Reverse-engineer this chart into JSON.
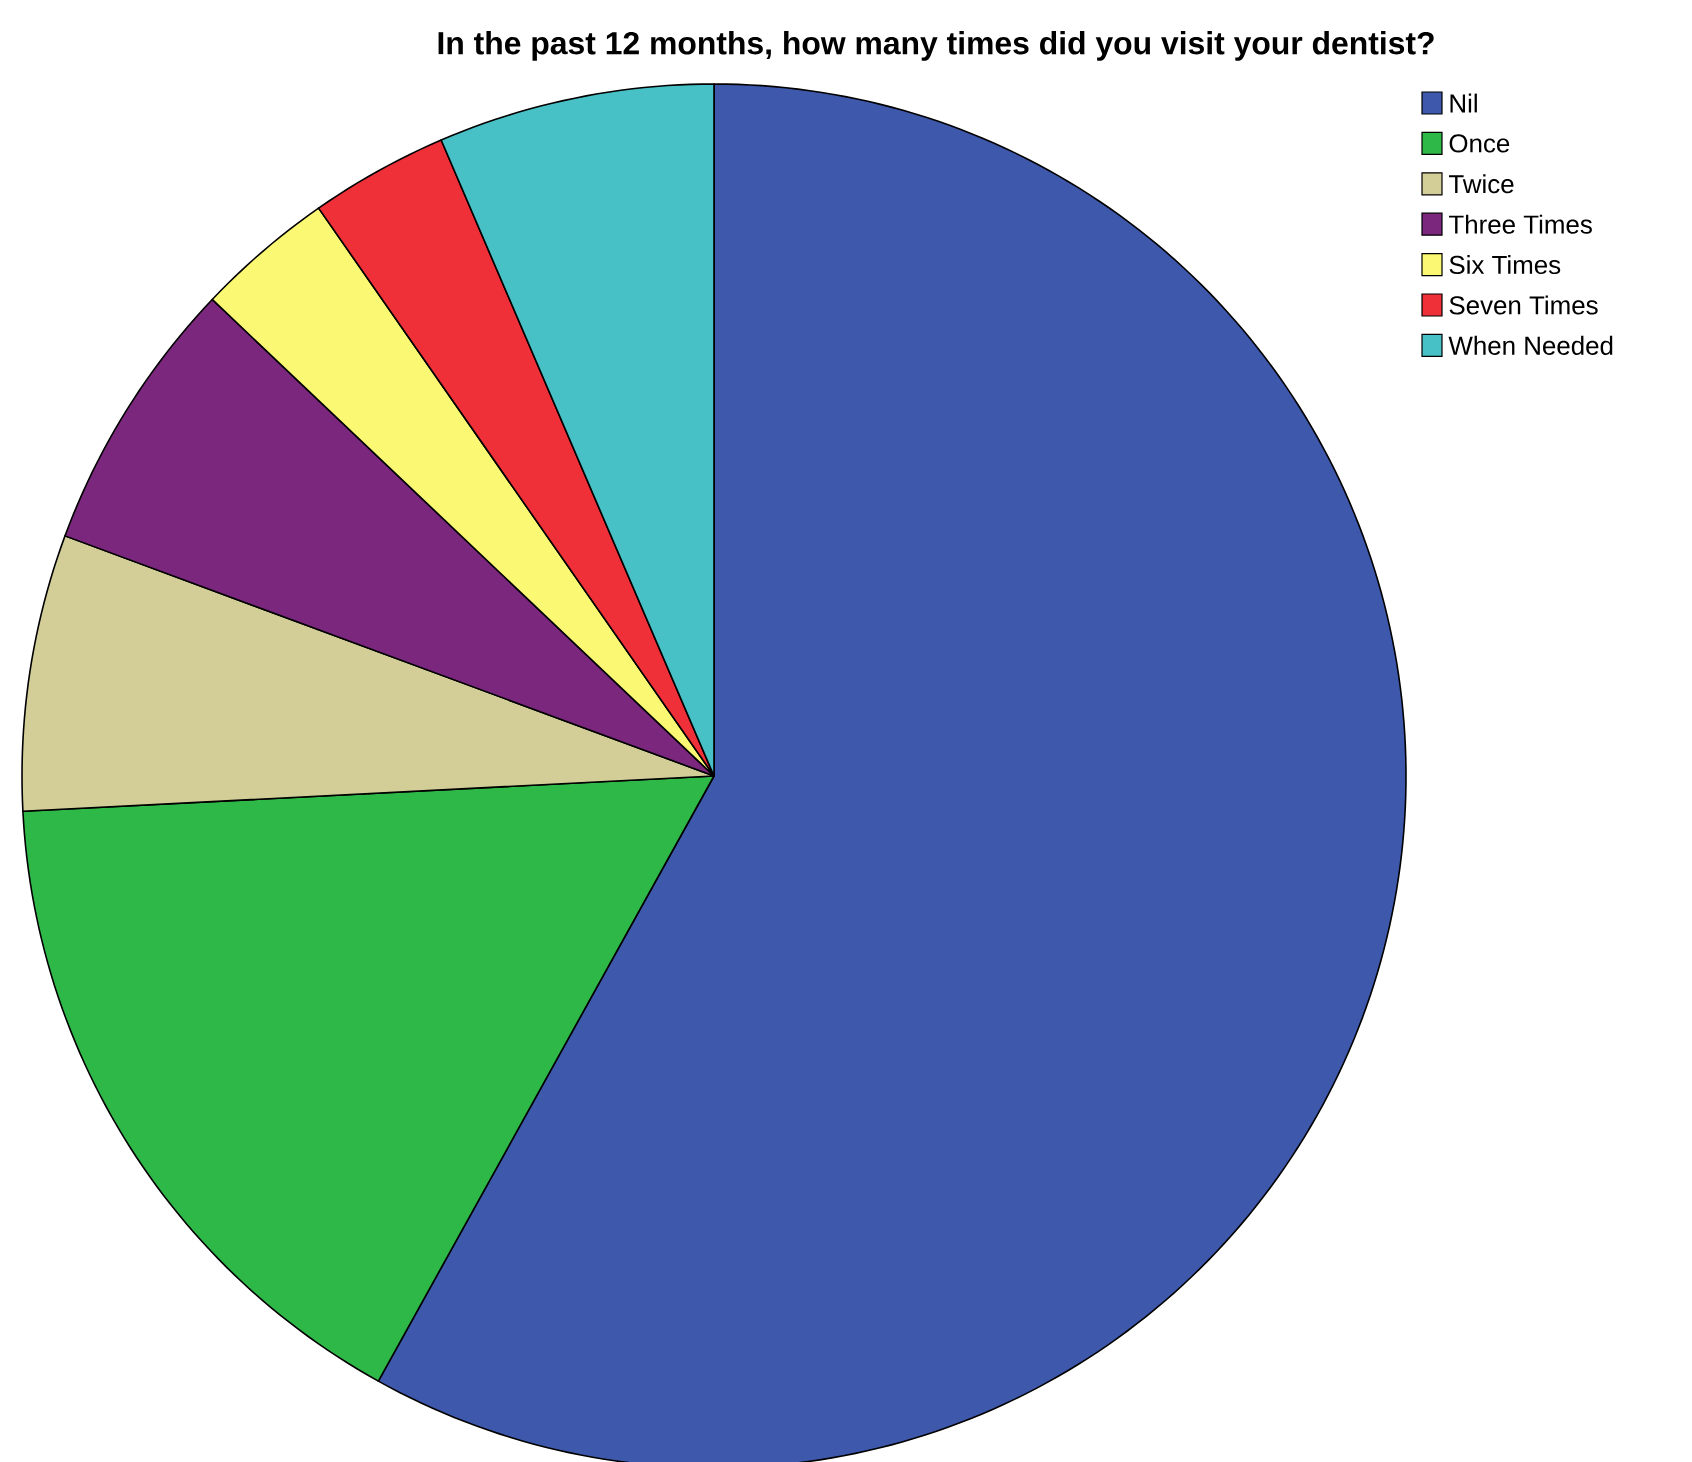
{
  "chart_data": {
    "type": "pie",
    "title": "In the past 12 months, how many times did you visit your dentist?",
    "categories": [
      "Nil",
      "Once",
      "Twice",
      "Three Times",
      "Six Times",
      "Seven Times",
      "When Needed"
    ],
    "values": [
      58.06,
      16.13,
      6.45,
      6.45,
      3.23,
      3.23,
      6.45
    ],
    "colors": [
      "#3e58ac",
      "#2eb848",
      "#d3ce97",
      "#7b277d",
      "#fbf873",
      "#ef3038",
      "#48c1c6"
    ],
    "legend": "top right"
  }
}
